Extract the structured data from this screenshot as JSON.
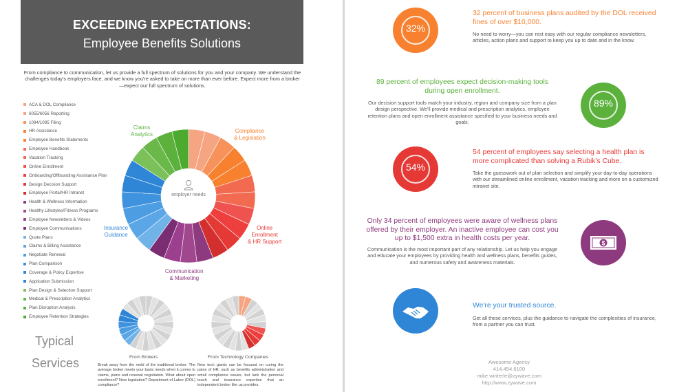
{
  "left": {
    "banner_title": "EXCEEDING EXPECTATIONS:",
    "banner_subtitle": "Employee Benefits Solutions",
    "intro": "From compliance to communication, let us provide a full spectrum of solutions for you and your company. We understand the challenges today's employers face, and we know you're asked to take on more than ever before. Expect more from a broker—expect our full spectrum of solutions.",
    "services": [
      {
        "label": "ACA & DOL Compliance",
        "color": "#f5a582"
      },
      {
        "label": "6055/6056 Reporting",
        "color": "#f5a582"
      },
      {
        "label": "1094/1095 Filing",
        "color": "#f7925a"
      },
      {
        "label": "HR Assistance",
        "color": "#f7812f"
      },
      {
        "label": "Employee Benefits Statements",
        "color": "#f7812f"
      },
      {
        "label": "Employee Handbook",
        "color": "#f26a4f"
      },
      {
        "label": "Vacation Tracking",
        "color": "#f26a4f"
      },
      {
        "label": "Online Enrollment",
        "color": "#ef5350"
      },
      {
        "label": "Onboarding/Offboarding Assistance Plan",
        "color": "#ef3e3e"
      },
      {
        "label": "Design Decision Support",
        "color": "#e53935"
      },
      {
        "label": "Employee Portal/HR Intranet",
        "color": "#d32f2f"
      },
      {
        "label": "Health & Wellness Information",
        "color": "#8e3a7e"
      },
      {
        "label": "Healthy Lifestyles/Fitness Programs",
        "color": "#a0478e"
      },
      {
        "label": "Employee Newsletters & Videos",
        "color": "#9c3f8f"
      },
      {
        "label": "Employee Communications",
        "color": "#7b2d73"
      },
      {
        "label": "Quote Plans",
        "color": "#6fb3e8"
      },
      {
        "label": "Claims & Billing Assistance",
        "color": "#5aa6e6"
      },
      {
        "label": "Negotiate Renewal",
        "color": "#4d9de3"
      },
      {
        "label": "Plan Comparison",
        "color": "#3e92de"
      },
      {
        "label": "Coverage & Policy Expertise",
        "color": "#2f86d6"
      },
      {
        "label": "Application Submission",
        "color": "#2f86d6"
      },
      {
        "label": "Plan Design & Selection Support",
        "color": "#7cc05a"
      },
      {
        "label": "Medical & Prescription Analytics",
        "color": "#6ab84a"
      },
      {
        "label": "Plan Disruption Analysis",
        "color": "#5bb13c"
      },
      {
        "label": "Employee Retention Strategies",
        "color": "#4caa2e"
      }
    ],
    "wheel_center": "employer needs",
    "segments": {
      "compliance": "Compliance\n& Legislation",
      "online": "Online\nEnrollment\n& HR Support",
      "communication": "Communication\n& Marketing",
      "insurance": "Insurance\nGuidance",
      "claims": "Claims\nAnalytics"
    },
    "typical_1": "Typical",
    "typical_2": "Services",
    "brokers_label": "From Brokers",
    "brokers_text": "Break away from the mold of the traditional broker. The average broker meets your basic needs when it comes to claims, plans and renewal negotiation. What about open enrollment? New legislation? Department of Labor (DOL) compliance?",
    "tech_label": "From Technology Companies",
    "tech_text": "New tech giants can be focused on curing the pains of HR, such as benefits administration and small compliance issues, but lack the personal touch and insurance expertise that an independent broker like us provides."
  },
  "right": {
    "stat1": {
      "pct": "32%",
      "title": "32 percent of business plans audited by the DOL received fines of over $10,000.",
      "body": "No need to worry—you can rest easy with our regular compliance newsletters, articles, action plans and support to keep you up to date and in the know.",
      "color": "#f7812f"
    },
    "stat2": {
      "pct": "89%",
      "title": "89 percent of employees expect decision-making tools during open enrollment.",
      "body": "Our decision support tools match your industry, region and company size from a plan design perspective. We'll provide medical and prescription analytics, employee retention plans and open enrollment assistance specified to your business needs and goals.",
      "color": "#5bb13c"
    },
    "stat3": {
      "pct": "54%",
      "title": "54 percent of employees say selecting a health plan is more complicated than solving a Rubik's Cube.",
      "body": "Take the guesswork out of plan selection and simplify your day-to-day operations with our streamlined online enrollment, vacation tracking and more on a customized intranet site.",
      "color": "#e53935"
    },
    "stat4": {
      "title": "Only 34 percent of employees were aware of wellness plans offered by their employer. An inactive employee can cost you up to $1,500 extra in health costs per year.",
      "body": "Communication is the most important part of any relationship. Let us help you engage and educate your employees by providing health and wellness plans, benefits guides, and numerous safety and awareness materials.",
      "color": "#8e3a7e"
    },
    "stat5": {
      "title": "We're your trusted source.",
      "body": "Get all these services, plus the guidance to navigate the complexities of insurance, from a partner you can trust.",
      "color": "#2f86d6"
    },
    "contact": [
      "Awesome Agency",
      "414.454.6100",
      "mike.winterle@zywave.com",
      "http://www.zywave.com"
    ]
  }
}
